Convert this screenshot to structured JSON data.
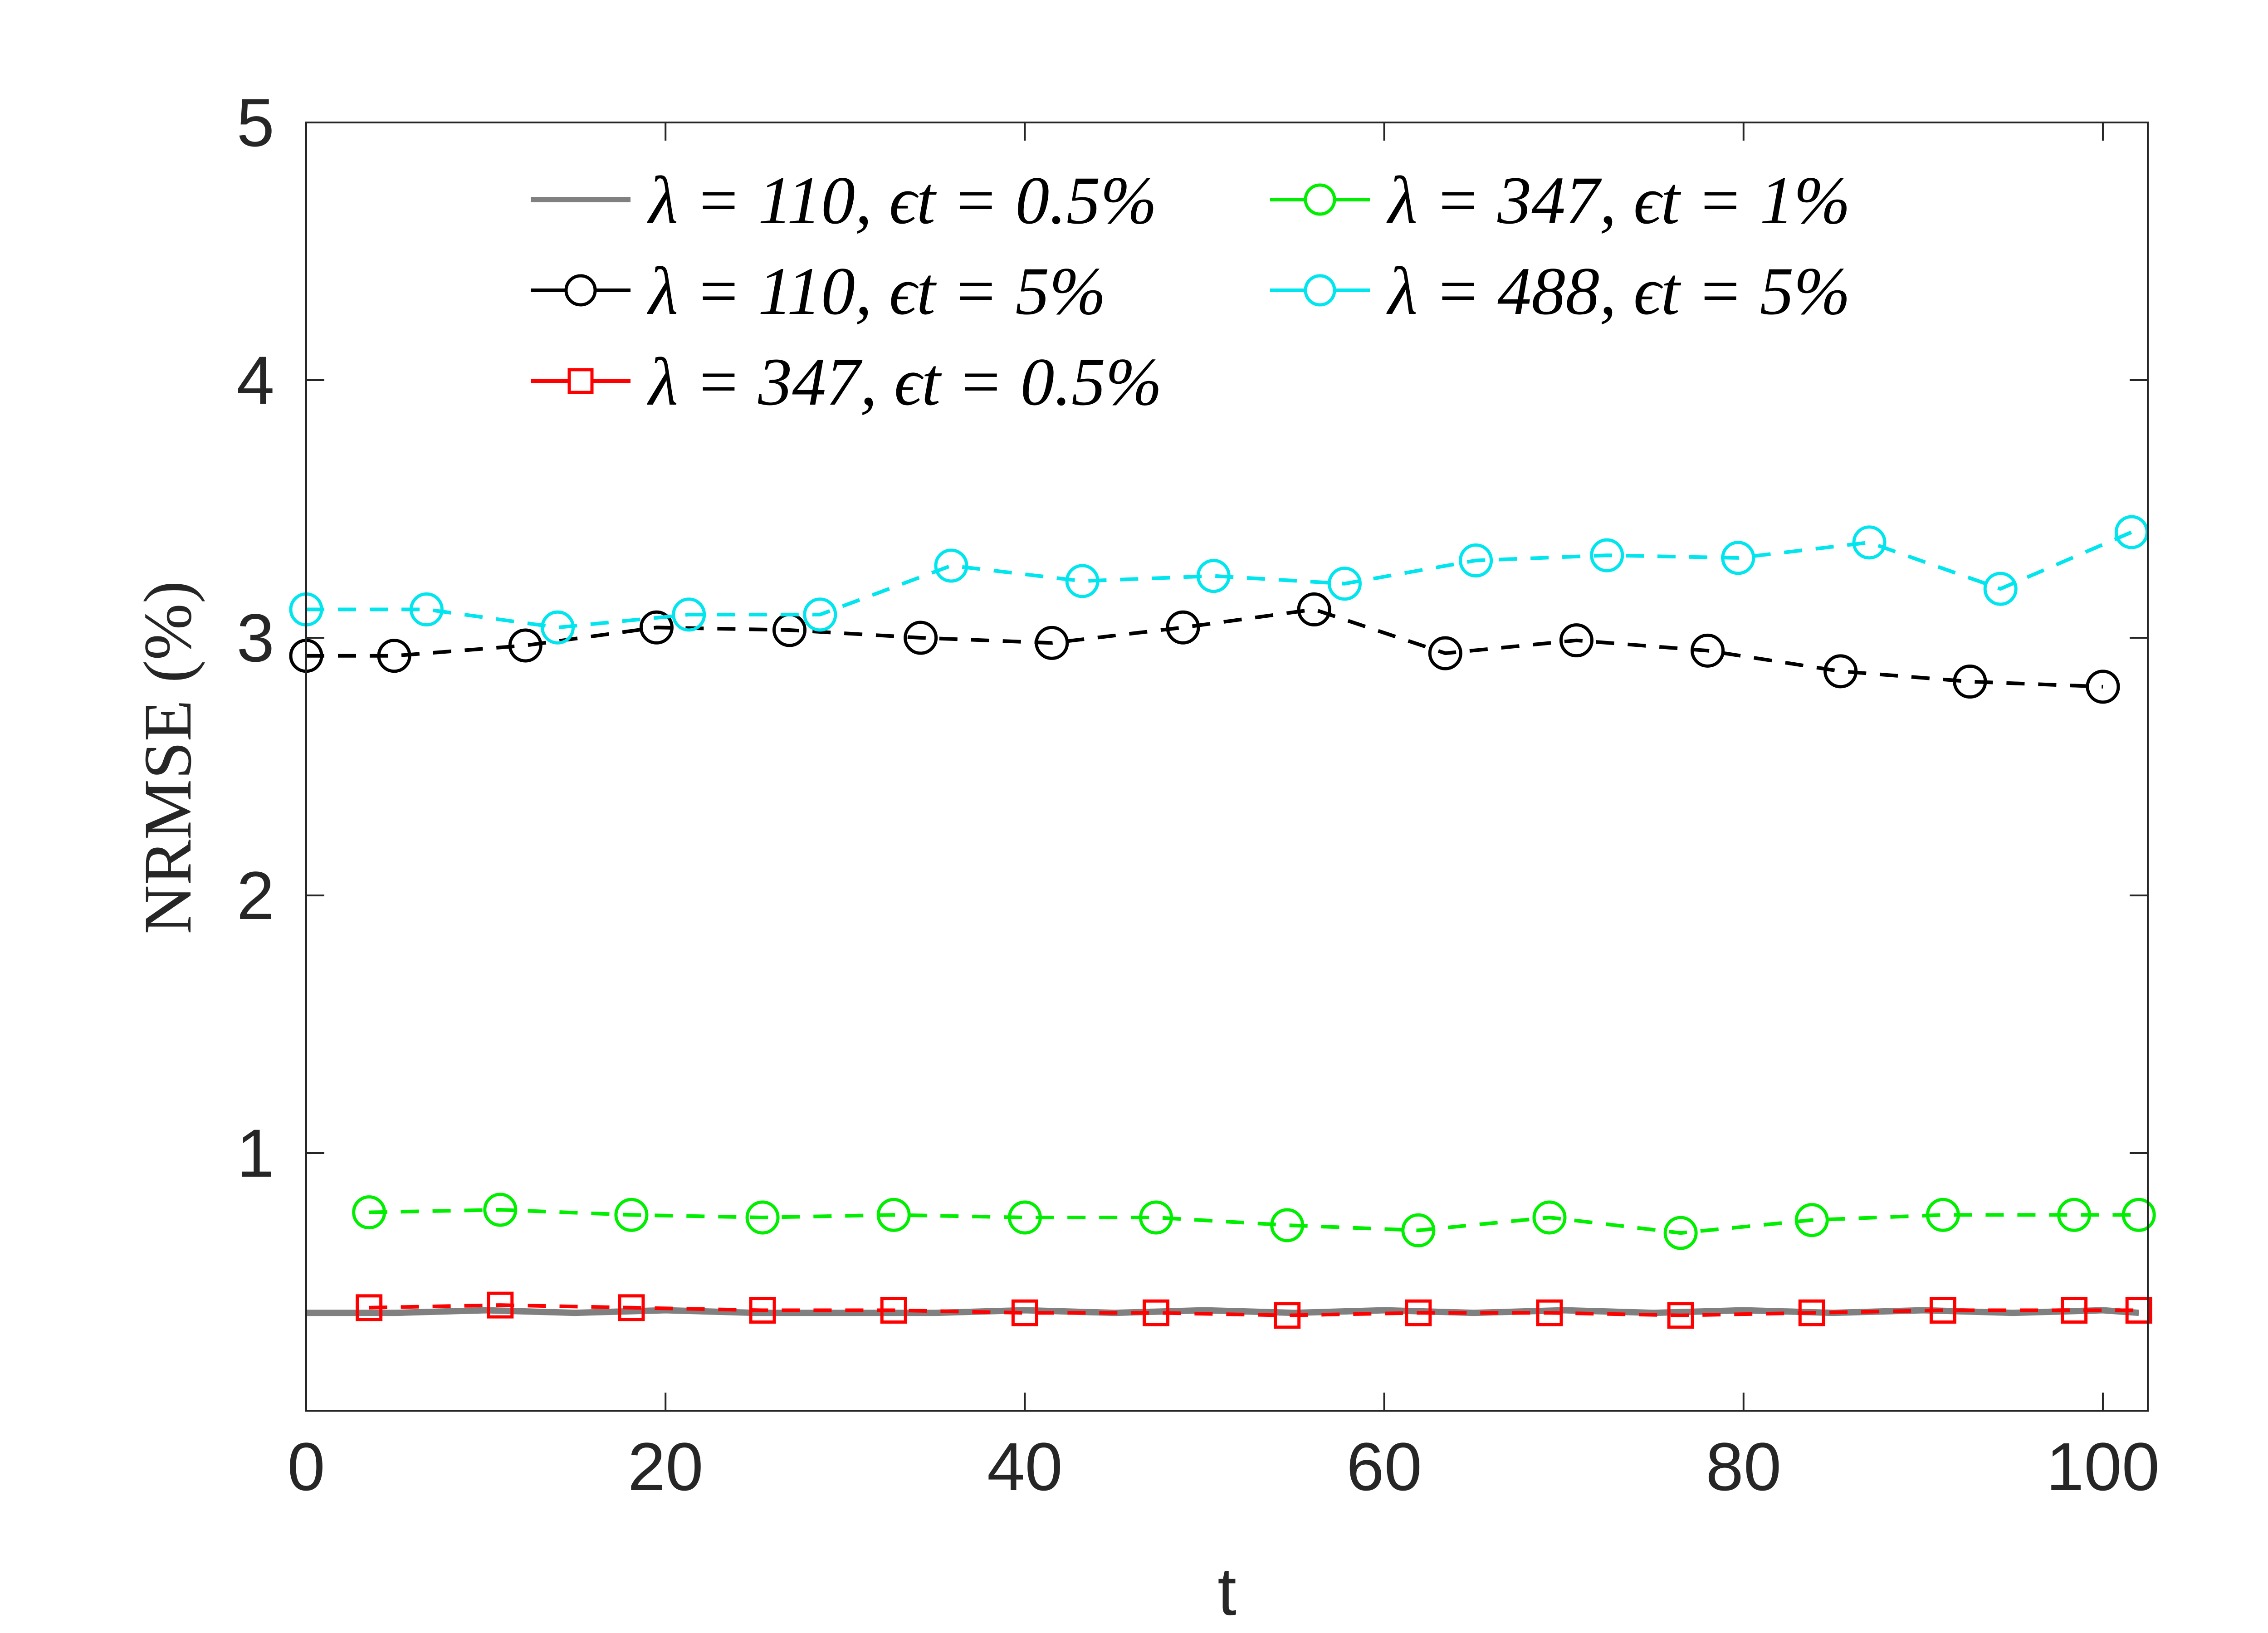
{
  "chart_data": {
    "type": "line",
    "title": "",
    "xlabel": "t",
    "ylabel": "NRMSE (%)",
    "xlim": [
      0,
      102.5
    ],
    "ylim": [
      0,
      5
    ],
    "xticks": [
      0,
      20,
      40,
      60,
      80,
      100
    ],
    "yticks": [
      1,
      2,
      3,
      4,
      5
    ],
    "xtick_labels": [
      "0",
      "20",
      "40",
      "60",
      "80",
      "100"
    ],
    "ytick_labels": [
      "1",
      "2",
      "3",
      "4",
      "5"
    ],
    "grid": false,
    "legend_position": "top",
    "series": [
      {
        "name": "λ = 110, ϵt = 0.5%",
        "color": "#808080",
        "line_style": "solid",
        "marker": "none",
        "x": [
          0,
          5,
          10,
          15,
          20,
          25,
          30,
          35,
          40,
          45,
          50,
          55,
          60,
          65,
          70,
          75,
          80,
          85,
          90,
          95,
          100,
          102
        ],
        "y": [
          0.38,
          0.38,
          0.39,
          0.38,
          0.39,
          0.38,
          0.38,
          0.38,
          0.39,
          0.38,
          0.39,
          0.38,
          0.39,
          0.38,
          0.39,
          0.38,
          0.39,
          0.38,
          0.39,
          0.38,
          0.39,
          0.38
        ]
      },
      {
        "name": "λ = 110, ϵt = 5%",
        "color": "#000000",
        "line_style": "dashed",
        "marker": "circle",
        "x": [
          0,
          4.9,
          12.2,
          19.5,
          26.9,
          34.2,
          41.5,
          48.8,
          56.1,
          63.4,
          70.7,
          78,
          85.4,
          92.6,
          100
        ],
        "y": [
          2.93,
          2.93,
          2.97,
          3.04,
          3.03,
          3.0,
          2.98,
          3.04,
          3.11,
          2.94,
          2.99,
          2.95,
          2.87,
          2.83,
          2.81
        ]
      },
      {
        "name": "λ = 347, ϵt = 0.5%",
        "color": "#ff0000",
        "line_style": "dashed",
        "marker": "square",
        "x": [
          3.5,
          10.8,
          18.1,
          25.4,
          32.7,
          40,
          47.3,
          54.6,
          61.9,
          69.2,
          76.5,
          83.8,
          91.1,
          98.4,
          102
        ],
        "y": [
          0.4,
          0.41,
          0.4,
          0.39,
          0.39,
          0.38,
          0.38,
          0.37,
          0.38,
          0.38,
          0.37,
          0.38,
          0.39,
          0.39,
          0.39
        ]
      },
      {
        "name": "λ = 347, ϵt = 1%",
        "color": "#00ee00",
        "line_style": "dashed",
        "marker": "circle",
        "x": [
          3.5,
          10.8,
          18.1,
          25.4,
          32.7,
          40,
          47.3,
          54.6,
          61.9,
          69.2,
          76.5,
          83.8,
          91.1,
          98.4,
          102
        ],
        "y": [
          0.77,
          0.78,
          0.76,
          0.75,
          0.76,
          0.75,
          0.75,
          0.72,
          0.7,
          0.75,
          0.69,
          0.74,
          0.76,
          0.76,
          0.76
        ]
      },
      {
        "name": "λ = 488, ϵt = 5%",
        "color": "#00e5ee",
        "line_style": "dashed",
        "marker": "circle",
        "x": [
          0,
          6.7,
          14,
          21.3,
          28.6,
          35.9,
          43.2,
          50.5,
          57.8,
          65.1,
          72.4,
          79.7,
          87,
          94.3,
          101.6
        ],
        "y": [
          3.11,
          3.11,
          3.04,
          3.09,
          3.09,
          3.28,
          3.22,
          3.24,
          3.21,
          3.3,
          3.32,
          3.31,
          3.37,
          3.19,
          3.41
        ]
      }
    ]
  },
  "legend": {
    "entries": [
      {
        "lambda": "110",
        "eps": "0.5%"
      },
      {
        "lambda": "110",
        "eps": "5%"
      },
      {
        "lambda": "347",
        "eps": "0.5%"
      },
      {
        "lambda": "347",
        "eps": "1%"
      },
      {
        "lambda": "488",
        "eps": "5%"
      }
    ]
  }
}
